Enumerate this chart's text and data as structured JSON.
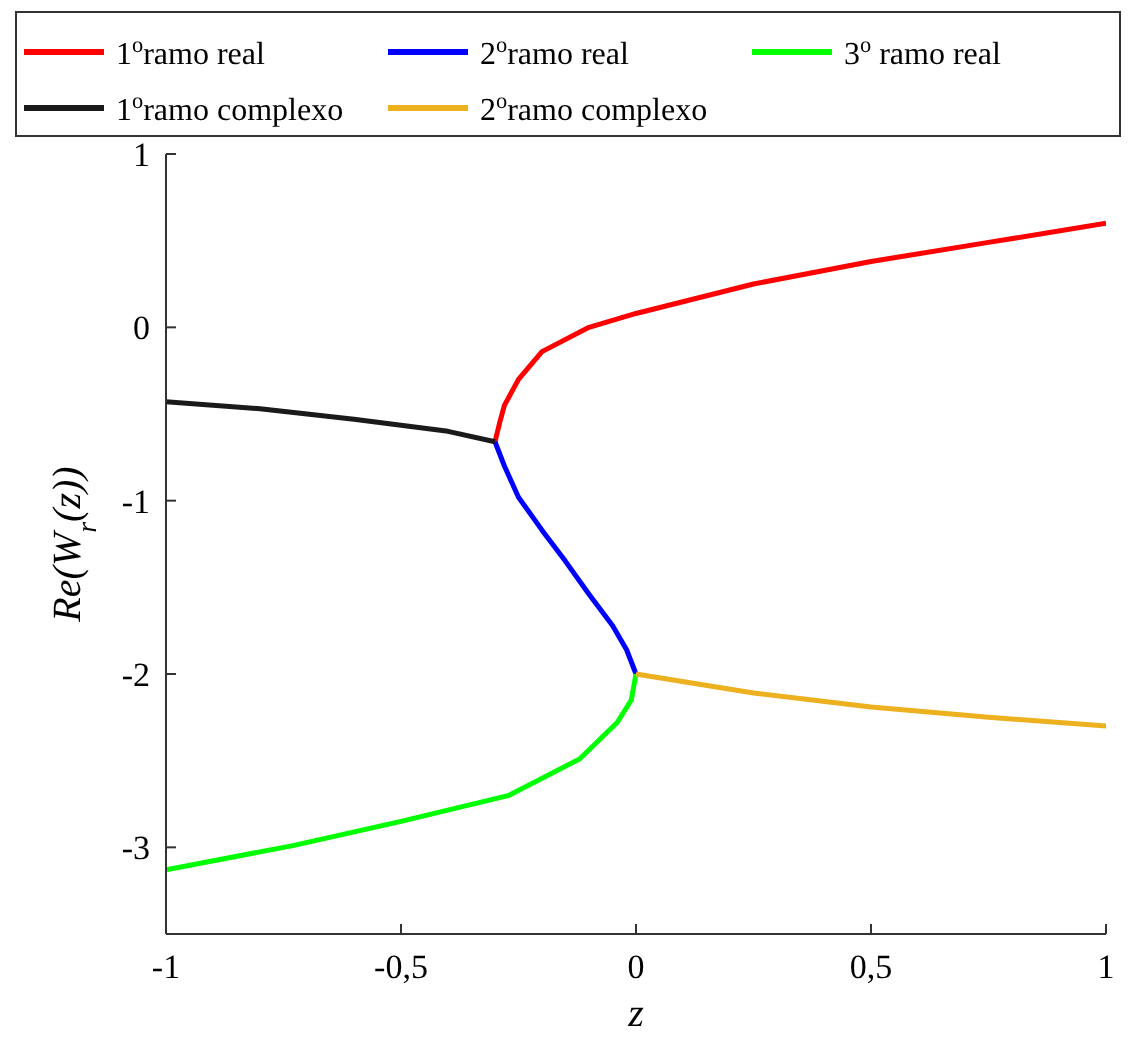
{
  "chart_data": {
    "type": "line",
    "xlabel": "z",
    "ylabel": "Re(W$_{r}$(z))",
    "xlim": [
      -1,
      1
    ],
    "ylim": [
      -3.5,
      1
    ],
    "xticks": [
      -1,
      {
        "value": -0.5,
        "label": "-0,5"
      },
      0,
      {
        "value": 0.5,
        "label": "0,5"
      },
      1
    ],
    "yticks": [
      -3,
      -2,
      -1,
      0,
      1
    ],
    "legend": "top",
    "grid": false,
    "marker": "none",
    "line_style": "solid",
    "series": [
      {
        "name": "1$^{o}$ramo real",
        "color": "#ff0000",
        "x": [
          -0.3,
          -0.29,
          -0.28,
          -0.25,
          -0.2,
          -0.1,
          0,
          0.25,
          0.5,
          0.75,
          1
        ],
        "values": [
          -0.66,
          -0.55,
          -0.45,
          -0.3,
          -0.14,
          0.0,
          0.08,
          0.25,
          0.38,
          0.49,
          0.6
        ]
      },
      {
        "name": "2$^{o}$ramo real",
        "color": "#0000ff",
        "x": [
          -0.3,
          -0.28,
          -0.25,
          -0.2,
          -0.15,
          -0.1,
          -0.05,
          -0.02,
          0
        ],
        "values": [
          -0.66,
          -0.8,
          -0.98,
          -1.17,
          -1.35,
          -1.54,
          -1.72,
          -1.86,
          -2
        ]
      },
      {
        "name": "3$^{o}$ ramo real",
        "color": "#00ff00",
        "x": [
          0,
          -0.01,
          -0.04,
          -0.12,
          -0.27,
          -0.5,
          -0.73,
          -1
        ],
        "values": [
          -2,
          -2.15,
          -2.28,
          -2.49,
          -2.7,
          -2.85,
          -2.99,
          -3.13
        ]
      },
      {
        "name": "1$^{o}$ramo complexo",
        "color": "#1a1a1a",
        "x": [
          -1,
          -0.8,
          -0.6,
          -0.4,
          -0.3
        ],
        "values": [
          -0.43,
          -0.47,
          -0.53,
          -0.6,
          -0.66
        ]
      },
      {
        "name": "2$^{o}$ramo complexo",
        "color": "#edb120",
        "x": [
          0,
          0.25,
          0.5,
          0.75,
          1
        ],
        "values": [
          -2,
          -2.11,
          -2.19,
          -2.25,
          -2.3
        ]
      }
    ]
  }
}
